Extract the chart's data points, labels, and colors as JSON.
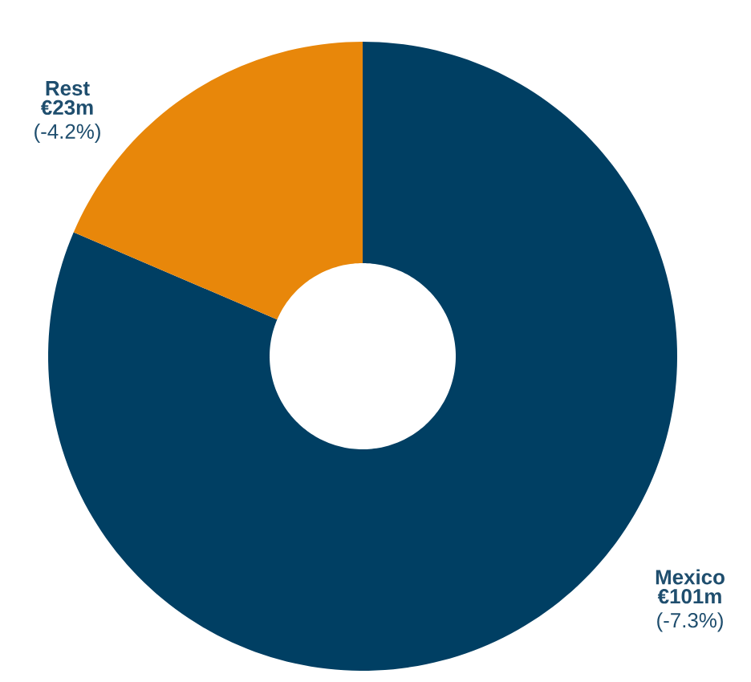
{
  "chart_data": {
    "type": "donut",
    "categories": [
      "Mexico",
      "Rest"
    ],
    "values": [
      101,
      23
    ],
    "colors": [
      "#003f63",
      "#e8870a"
    ],
    "value_labels": [
      "€101m",
      "€23m"
    ],
    "annotations": [
      "(-7.3%)",
      "(-4.2%)"
    ]
  }
}
